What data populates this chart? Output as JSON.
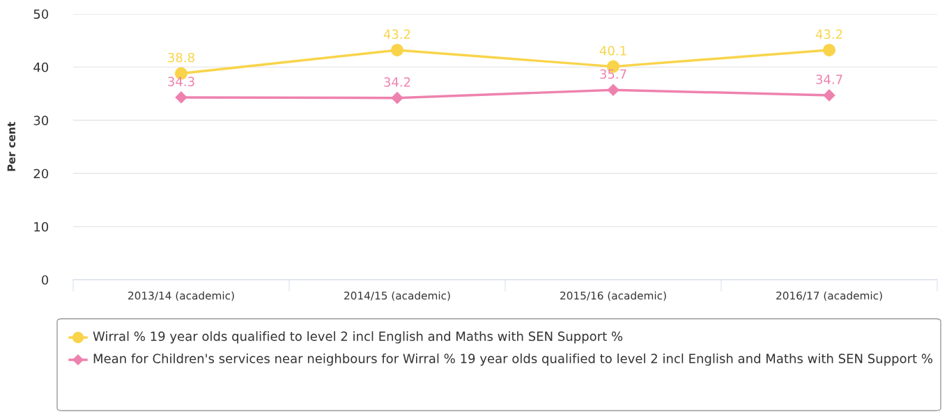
{
  "chart_data": {
    "type": "line",
    "ylabel": "Per cent",
    "categories": [
      "2013/14 (academic)",
      "2014/15 (academic)",
      "2015/16 (academic)",
      "2016/17 (academic)"
    ],
    "series": [
      {
        "name": "Wirral % 19 year olds qualified to level 2 incl English and Maths with SEN Support %",
        "color": "#f9d44a",
        "marker": "circle",
        "values": [
          38.8,
          43.2,
          40.1,
          43.2
        ]
      },
      {
        "name": "Mean for Children's services near neighbours for Wirral % 19 year olds qualified to level 2 incl English and Maths with SEN Support %",
        "color": "#ee82ae",
        "marker": "diamond",
        "values": [
          34.3,
          34.2,
          35.7,
          34.7
        ]
      }
    ],
    "ylim": [
      0,
      50
    ],
    "yticks": [
      0,
      10,
      20,
      30,
      40,
      50
    ],
    "grid": "y",
    "legend": "bottom",
    "data_labels": true,
    "line_style": "solid"
  }
}
